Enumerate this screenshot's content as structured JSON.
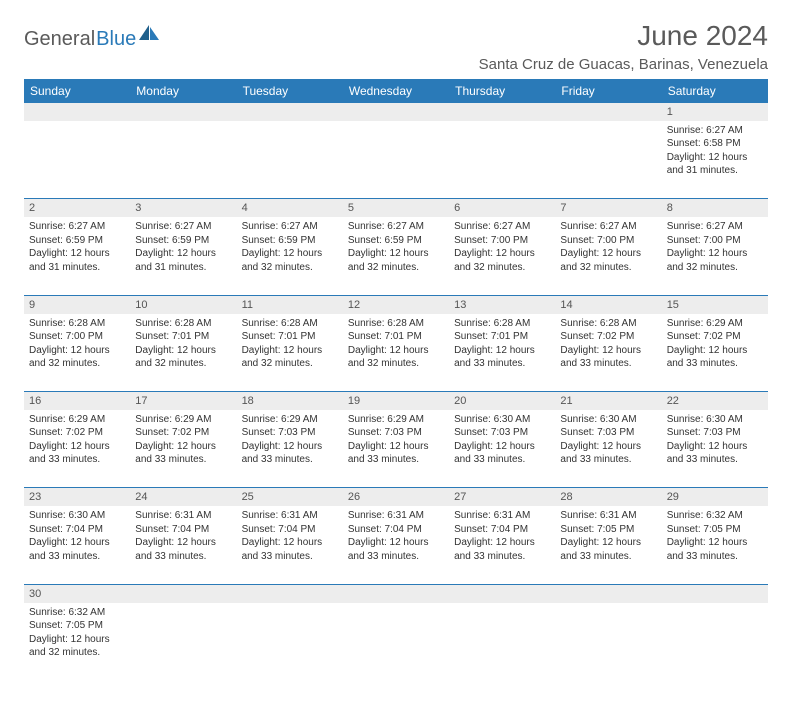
{
  "logo": {
    "part1": "General",
    "part2": "Blue"
  },
  "title": "June 2024",
  "location": "Santa Cruz de Guacas, Barinas, Venezuela",
  "colors": {
    "header_bg": "#2a7ab8",
    "header_text": "#ffffff",
    "daynum_bg": "#ededed",
    "text": "#333333",
    "border": "#2a7ab8",
    "logo_gray": "#5a5a5a",
    "logo_blue": "#2a7ab8"
  },
  "weekdays": [
    "Sunday",
    "Monday",
    "Tuesday",
    "Wednesday",
    "Thursday",
    "Friday",
    "Saturday"
  ],
  "weeks": [
    [
      null,
      null,
      null,
      null,
      null,
      null,
      {
        "n": "1",
        "sr": "Sunrise: 6:27 AM",
        "ss": "Sunset: 6:58 PM",
        "d1": "Daylight: 12 hours",
        "d2": "and 31 minutes."
      }
    ],
    [
      {
        "n": "2",
        "sr": "Sunrise: 6:27 AM",
        "ss": "Sunset: 6:59 PM",
        "d1": "Daylight: 12 hours",
        "d2": "and 31 minutes."
      },
      {
        "n": "3",
        "sr": "Sunrise: 6:27 AM",
        "ss": "Sunset: 6:59 PM",
        "d1": "Daylight: 12 hours",
        "d2": "and 31 minutes."
      },
      {
        "n": "4",
        "sr": "Sunrise: 6:27 AM",
        "ss": "Sunset: 6:59 PM",
        "d1": "Daylight: 12 hours",
        "d2": "and 32 minutes."
      },
      {
        "n": "5",
        "sr": "Sunrise: 6:27 AM",
        "ss": "Sunset: 6:59 PM",
        "d1": "Daylight: 12 hours",
        "d2": "and 32 minutes."
      },
      {
        "n": "6",
        "sr": "Sunrise: 6:27 AM",
        "ss": "Sunset: 7:00 PM",
        "d1": "Daylight: 12 hours",
        "d2": "and 32 minutes."
      },
      {
        "n": "7",
        "sr": "Sunrise: 6:27 AM",
        "ss": "Sunset: 7:00 PM",
        "d1": "Daylight: 12 hours",
        "d2": "and 32 minutes."
      },
      {
        "n": "8",
        "sr": "Sunrise: 6:27 AM",
        "ss": "Sunset: 7:00 PM",
        "d1": "Daylight: 12 hours",
        "d2": "and 32 minutes."
      }
    ],
    [
      {
        "n": "9",
        "sr": "Sunrise: 6:28 AM",
        "ss": "Sunset: 7:00 PM",
        "d1": "Daylight: 12 hours",
        "d2": "and 32 minutes."
      },
      {
        "n": "10",
        "sr": "Sunrise: 6:28 AM",
        "ss": "Sunset: 7:01 PM",
        "d1": "Daylight: 12 hours",
        "d2": "and 32 minutes."
      },
      {
        "n": "11",
        "sr": "Sunrise: 6:28 AM",
        "ss": "Sunset: 7:01 PM",
        "d1": "Daylight: 12 hours",
        "d2": "and 32 minutes."
      },
      {
        "n": "12",
        "sr": "Sunrise: 6:28 AM",
        "ss": "Sunset: 7:01 PM",
        "d1": "Daylight: 12 hours",
        "d2": "and 32 minutes."
      },
      {
        "n": "13",
        "sr": "Sunrise: 6:28 AM",
        "ss": "Sunset: 7:01 PM",
        "d1": "Daylight: 12 hours",
        "d2": "and 33 minutes."
      },
      {
        "n": "14",
        "sr": "Sunrise: 6:28 AM",
        "ss": "Sunset: 7:02 PM",
        "d1": "Daylight: 12 hours",
        "d2": "and 33 minutes."
      },
      {
        "n": "15",
        "sr": "Sunrise: 6:29 AM",
        "ss": "Sunset: 7:02 PM",
        "d1": "Daylight: 12 hours",
        "d2": "and 33 minutes."
      }
    ],
    [
      {
        "n": "16",
        "sr": "Sunrise: 6:29 AM",
        "ss": "Sunset: 7:02 PM",
        "d1": "Daylight: 12 hours",
        "d2": "and 33 minutes."
      },
      {
        "n": "17",
        "sr": "Sunrise: 6:29 AM",
        "ss": "Sunset: 7:02 PM",
        "d1": "Daylight: 12 hours",
        "d2": "and 33 minutes."
      },
      {
        "n": "18",
        "sr": "Sunrise: 6:29 AM",
        "ss": "Sunset: 7:03 PM",
        "d1": "Daylight: 12 hours",
        "d2": "and 33 minutes."
      },
      {
        "n": "19",
        "sr": "Sunrise: 6:29 AM",
        "ss": "Sunset: 7:03 PM",
        "d1": "Daylight: 12 hours",
        "d2": "and 33 minutes."
      },
      {
        "n": "20",
        "sr": "Sunrise: 6:30 AM",
        "ss": "Sunset: 7:03 PM",
        "d1": "Daylight: 12 hours",
        "d2": "and 33 minutes."
      },
      {
        "n": "21",
        "sr": "Sunrise: 6:30 AM",
        "ss": "Sunset: 7:03 PM",
        "d1": "Daylight: 12 hours",
        "d2": "and 33 minutes."
      },
      {
        "n": "22",
        "sr": "Sunrise: 6:30 AM",
        "ss": "Sunset: 7:03 PM",
        "d1": "Daylight: 12 hours",
        "d2": "and 33 minutes."
      }
    ],
    [
      {
        "n": "23",
        "sr": "Sunrise: 6:30 AM",
        "ss": "Sunset: 7:04 PM",
        "d1": "Daylight: 12 hours",
        "d2": "and 33 minutes."
      },
      {
        "n": "24",
        "sr": "Sunrise: 6:31 AM",
        "ss": "Sunset: 7:04 PM",
        "d1": "Daylight: 12 hours",
        "d2": "and 33 minutes."
      },
      {
        "n": "25",
        "sr": "Sunrise: 6:31 AM",
        "ss": "Sunset: 7:04 PM",
        "d1": "Daylight: 12 hours",
        "d2": "and 33 minutes."
      },
      {
        "n": "26",
        "sr": "Sunrise: 6:31 AM",
        "ss": "Sunset: 7:04 PM",
        "d1": "Daylight: 12 hours",
        "d2": "and 33 minutes."
      },
      {
        "n": "27",
        "sr": "Sunrise: 6:31 AM",
        "ss": "Sunset: 7:04 PM",
        "d1": "Daylight: 12 hours",
        "d2": "and 33 minutes."
      },
      {
        "n": "28",
        "sr": "Sunrise: 6:31 AM",
        "ss": "Sunset: 7:05 PM",
        "d1": "Daylight: 12 hours",
        "d2": "and 33 minutes."
      },
      {
        "n": "29",
        "sr": "Sunrise: 6:32 AM",
        "ss": "Sunset: 7:05 PM",
        "d1": "Daylight: 12 hours",
        "d2": "and 33 minutes."
      }
    ],
    [
      {
        "n": "30",
        "sr": "Sunrise: 6:32 AM",
        "ss": "Sunset: 7:05 PM",
        "d1": "Daylight: 12 hours",
        "d2": "and 32 minutes."
      },
      null,
      null,
      null,
      null,
      null,
      null
    ]
  ]
}
